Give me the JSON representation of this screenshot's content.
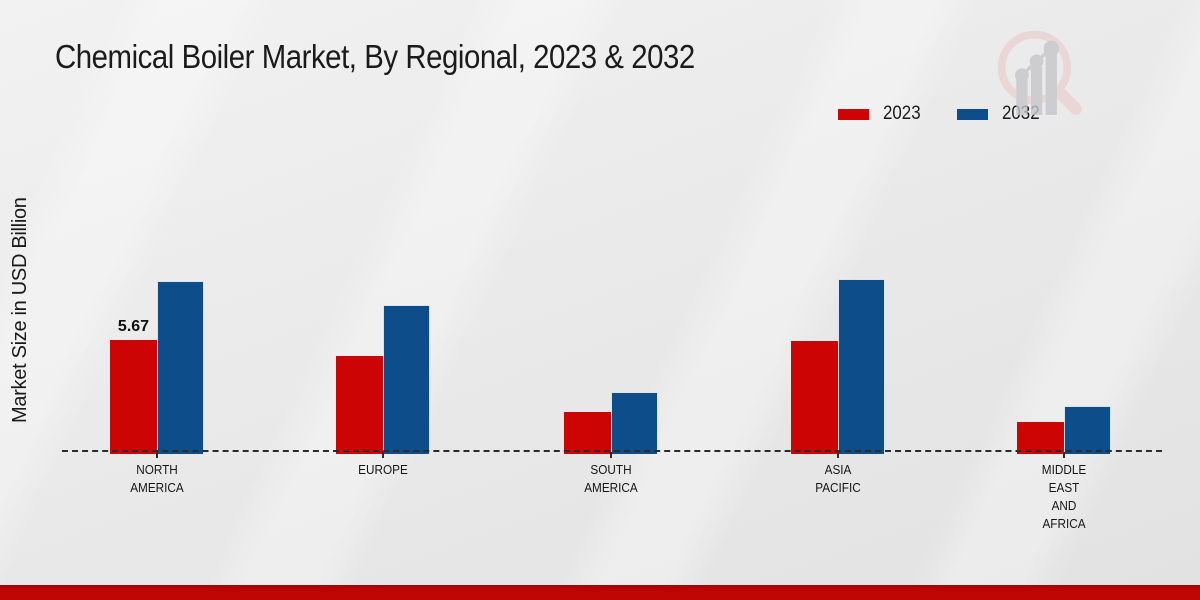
{
  "title": "Chemical Boiler Market, By Regional, 2023 & 2032",
  "ylabel": "Market Size in USD Billion",
  "legend": {
    "items": [
      "2023",
      "2032"
    ],
    "position": "top-right"
  },
  "colors": {
    "series_2023": "#cc0404",
    "series_2032": "#0d4d8a",
    "footer_accent": "#c00505",
    "baseline": "#2b2b2b",
    "background": "#e9e9e9"
  },
  "icons": {
    "watermark": "magnifier-bar-chart-logo"
  },
  "chart_data": {
    "type": "bar",
    "categories": [
      "North America",
      "Europe",
      "South America",
      "Asia Pacific",
      "Middle East and Africa"
    ],
    "series": [
      {
        "name": "2023",
        "color": "#cc0404",
        "values": [
          5.67,
          4.9,
          2.1,
          5.6,
          1.6
        ]
      },
      {
        "name": "2032",
        "color": "#0d4d8a",
        "values": [
          8.6,
          7.4,
          3.1,
          8.7,
          2.4
        ]
      }
    ],
    "title": "Chemical Boiler Market, By Regional, 2023 & 2032",
    "xlabel": "",
    "ylabel": "Market Size in USD Billion",
    "ylim": [
      0,
      10
    ],
    "grid": false,
    "legend_position": "top-right",
    "annotations": [
      {
        "category": "North America",
        "series": "2023",
        "text": "5.67"
      }
    ]
  },
  "category_display": [
    [
      "NORTH",
      "AMERICA"
    ],
    [
      "EUROPE"
    ],
    [
      "SOUTH",
      "AMERICA"
    ],
    [
      "ASIA",
      "PACIFIC"
    ],
    [
      "MIDDLE",
      "EAST",
      "AND",
      "AFRICA"
    ]
  ]
}
